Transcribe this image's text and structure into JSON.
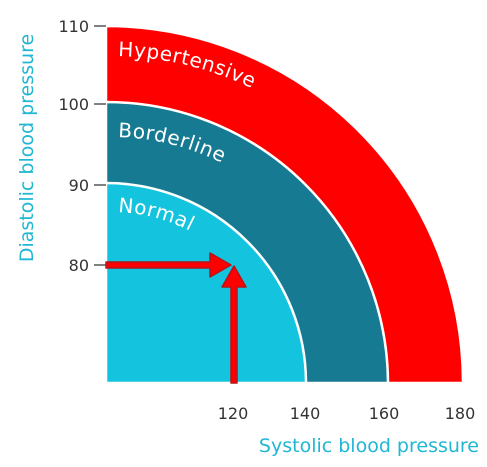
{
  "colors": {
    "normal": "#14c3dd",
    "borderline": "#157a92",
    "hypertensive": "#ff0000",
    "axis_title": "#20b7d4",
    "tick": "#333333",
    "arrow_fill": "#ff0000",
    "arrow_stroke": "#b51418",
    "zone_border": "#ffffff"
  },
  "diagram": {
    "x_axis_title": "Systolic blood pressure",
    "y_axis_title": "Diastolic blood pressure",
    "x_ticks": [
      "120",
      "140",
      "160",
      "180"
    ],
    "y_ticks": [
      "80",
      "90",
      "100",
      "110"
    ],
    "zones": {
      "hypertensive": "Hypertensive",
      "borderline": "Borderline",
      "normal": "Normal"
    },
    "marker": {
      "systolic": 120,
      "diastolic": 80
    }
  }
}
